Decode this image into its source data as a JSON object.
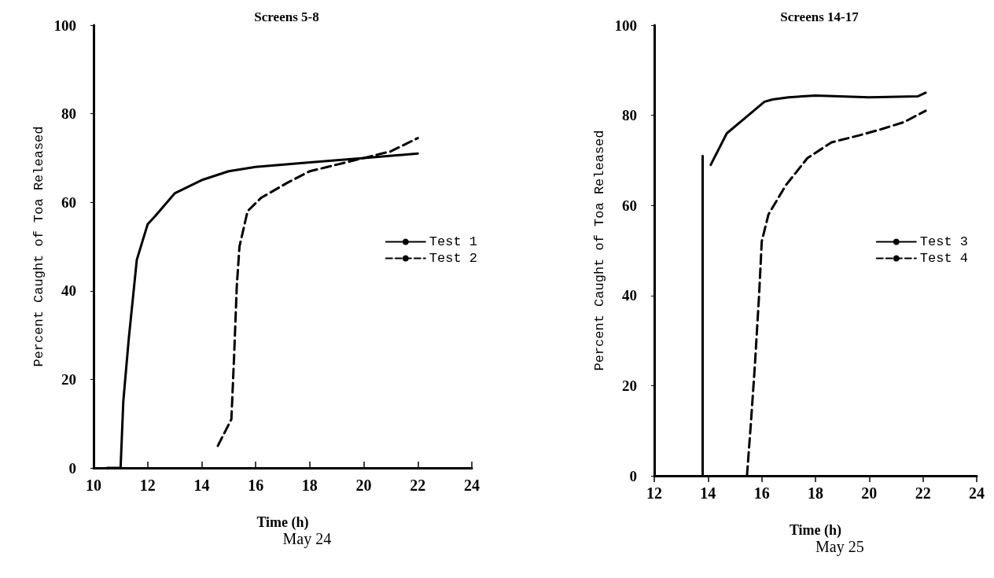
{
  "chart_data": [
    {
      "type": "line",
      "title": "Screens 5-8",
      "xlabel": "Time (h)",
      "ylabel": "Percent Caught of Toa Released",
      "annotations": [
        "May 24"
      ],
      "xlim": [
        10,
        24
      ],
      "xticks": [
        10,
        12,
        14,
        16,
        18,
        20,
        22,
        24
      ],
      "ylim": [
        0,
        100
      ],
      "yticks": [
        0,
        20,
        40,
        60,
        80,
        100
      ],
      "grid": false,
      "legend": "right",
      "marker": "none",
      "series": [
        {
          "name": "Test 1",
          "color": "#000000",
          "line_style": "solid",
          "x": [
            10.5,
            11.0,
            11.1,
            11.3,
            11.6,
            12.0,
            12.3,
            13,
            14,
            15,
            16,
            18,
            20,
            22
          ],
          "values": [
            0,
            0,
            15,
            29,
            47,
            55,
            57,
            62,
            65,
            67,
            68,
            69,
            70,
            71
          ]
        },
        {
          "name": "Test 2",
          "color": "#000000",
          "line_style": "dashed",
          "x": [
            14.6,
            15.1,
            15.2,
            15.3,
            15.4,
            15.7,
            16.2,
            17.2,
            18,
            19,
            20,
            21,
            22
          ],
          "values": [
            5,
            11,
            25,
            41,
            50,
            58,
            61,
            64.5,
            67,
            68.5,
            70,
            71.5,
            74.5
          ]
        }
      ]
    },
    {
      "type": "line",
      "title": "Screens 14-17",
      "xlabel": "Time (h)",
      "ylabel": "Percent Caught of Toa Released",
      "annotations": [
        "May 25"
      ],
      "xlim": [
        12,
        24
      ],
      "xticks": [
        12,
        14,
        16,
        18,
        20,
        22,
        24
      ],
      "ylim": [
        0,
        100
      ],
      "yticks": [
        0,
        20,
        40,
        60,
        80,
        100
      ],
      "grid": false,
      "legend": "right",
      "marker": "none",
      "series": [
        {
          "name": "Test 3",
          "color": "#000000",
          "line_style": "solid",
          "x": [
            13.8,
            13.8,
            13.95,
            14.1,
            14.7,
            15.5,
            16.1,
            16.4,
            17,
            18,
            20,
            21.8,
            22.1
          ],
          "values": [
            0,
            71,
            null,
            69,
            76,
            80,
            83,
            83.5,
            84,
            84.4,
            84,
            84.2,
            85
          ]
        },
        {
          "name": "Test 4",
          "color": "#000000",
          "line_style": "dashed",
          "x": [
            15.45,
            15.6,
            15.75,
            15.9,
            16.0,
            16.25,
            16.9,
            17.7,
            18.6,
            19.6,
            20.5,
            21.3,
            22.1
          ],
          "values": [
            0,
            12,
            25,
            40,
            52,
            58,
            64.5,
            70.5,
            74,
            75.5,
            77,
            78.5,
            81
          ]
        }
      ]
    }
  ]
}
